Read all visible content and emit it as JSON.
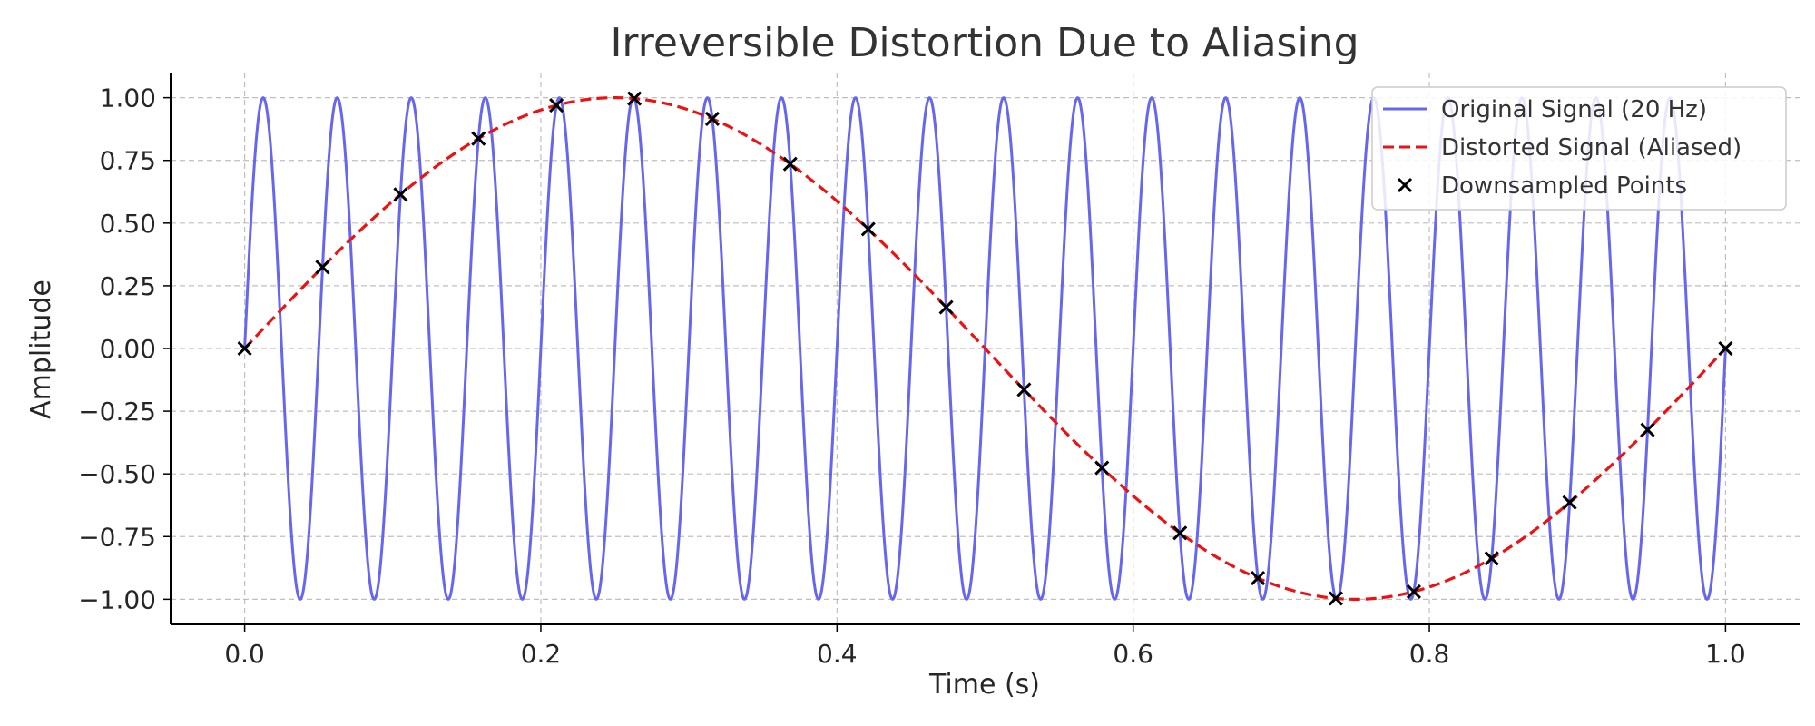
{
  "chart_data": {
    "type": "line",
    "title": "Irreversible Distortion Due to Aliasing",
    "xlabel": "Time (s)",
    "ylabel": "Amplitude",
    "xlim": [
      -0.05,
      1.05
    ],
    "ylim": [
      -1.1,
      1.1
    ],
    "xticks": [
      0.0,
      0.2,
      0.4,
      0.6,
      0.8,
      1.0
    ],
    "xtick_labels": [
      "0.0",
      "0.2",
      "0.4",
      "0.6",
      "0.8",
      "1.0"
    ],
    "yticks": [
      1.0,
      0.75,
      0.5,
      0.25,
      0.0,
      -0.25,
      -0.5,
      -0.75,
      -1.0
    ],
    "ytick_labels": [
      "1.00",
      "0.75",
      "0.50",
      "0.25",
      "0.00",
      "−0.25",
      "−0.50",
      "−0.75",
      "−1.00"
    ],
    "grid": true,
    "legend_position": "top-right",
    "series": [
      {
        "name": "Original Signal (20 Hz)",
        "kind": "line",
        "color": "#6666ee",
        "style": "solid",
        "function": "sin(2*pi*20*t)",
        "frequency_hz": 20,
        "t_range": [
          0,
          1
        ]
      },
      {
        "name": "Distorted Signal (Aliased)",
        "kind": "line",
        "color": "#ee1111",
        "style": "dashed",
        "function": "sin(2*pi*1*t)",
        "frequency_hz": 1,
        "t_range": [
          0,
          1
        ]
      },
      {
        "name": "Downsampled Points",
        "kind": "scatter",
        "color": "#000000",
        "marker": "x",
        "x": [
          0.0,
          0.0526,
          0.1053,
          0.1579,
          0.2105,
          0.2632,
          0.3158,
          0.3684,
          0.4211,
          0.4737,
          0.5263,
          0.5789,
          0.6316,
          0.6842,
          0.7368,
          0.7895,
          0.8421,
          0.8947,
          0.9474,
          1.0
        ],
        "y": [
          0.0,
          0.3247,
          0.6142,
          0.8372,
          0.9694,
          0.9966,
          0.9158,
          0.7357,
          0.4759,
          0.1646,
          -0.1646,
          -0.4759,
          -0.7357,
          -0.9158,
          -0.9966,
          -0.9694,
          -0.8372,
          -0.6142,
          -0.3247,
          0.0
        ]
      }
    ]
  }
}
